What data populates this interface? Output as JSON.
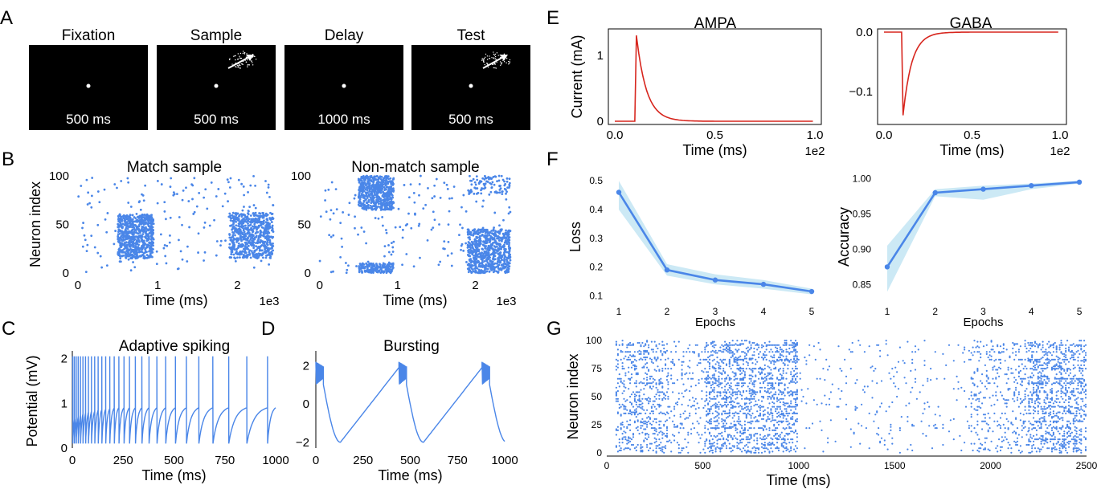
{
  "panel_letters": [
    "A",
    "B",
    "C",
    "D",
    "E",
    "F",
    "G"
  ],
  "colors": {
    "blue": "#4a86e8",
    "red": "#d7261e",
    "band": "#bfe3f2"
  },
  "chart_data": [
    {
      "id": "A",
      "type": "diagram",
      "stages": [
        {
          "title": "Fixation",
          "duration": "500 ms",
          "arrow": false
        },
        {
          "title": "Sample",
          "duration": "500 ms",
          "arrow": true
        },
        {
          "title": "Delay",
          "duration": "1000 ms",
          "arrow": false
        },
        {
          "title": "Test",
          "duration": "500 ms",
          "arrow": true
        }
      ]
    },
    {
      "id": "B1",
      "type": "scatter",
      "title": "Match sample",
      "xlabel": "Time (ms)",
      "ylabel": "Neuron index",
      "xlim": [
        -0.05,
        2.5
      ],
      "ylim": [
        0,
        100
      ],
      "x_scale": "1e3",
      "xticks": [
        0,
        1,
        2
      ],
      "yticks": [
        0,
        50,
        100
      ],
      "clusters": [
        {
          "x": [
            0.5,
            0.95
          ],
          "y": [
            15,
            60
          ],
          "n": 700
        },
        {
          "x": [
            1.9,
            2.45
          ],
          "y": [
            15,
            62
          ],
          "n": 650
        }
      ],
      "background_n": 180
    },
    {
      "id": "B2",
      "type": "scatter",
      "title": "Non-match sample",
      "xlabel": "Time (ms)",
      "ylabel": "",
      "xlim": [
        -0.05,
        2.5
      ],
      "ylim": [
        0,
        100
      ],
      "x_scale": "1e3",
      "xticks": [
        0,
        1,
        2
      ],
      "yticks": [
        0,
        50,
        100
      ],
      "clusters": [
        {
          "x": [
            0.5,
            0.95
          ],
          "y": [
            65,
            100
          ],
          "n": 550
        },
        {
          "x": [
            0.5,
            0.95
          ],
          "y": [
            0,
            10
          ],
          "n": 180
        },
        {
          "x": [
            1.9,
            2.45
          ],
          "y": [
            0,
            45
          ],
          "n": 700
        },
        {
          "x": [
            1.9,
            2.45
          ],
          "y": [
            80,
            100
          ],
          "n": 90
        }
      ],
      "background_n": 180
    },
    {
      "id": "C",
      "type": "line",
      "title": "Adaptive spiking",
      "xlabel": "Time (ms)",
      "ylabel": "Potential (mV)",
      "xlim": [
        0,
        1000
      ],
      "ylim": [
        0,
        2.1
      ],
      "xticks": [
        0,
        250,
        500,
        750,
        1000
      ],
      "yticks": [
        0,
        1,
        2
      ],
      "spike_times": [
        2,
        10,
        19,
        29,
        40,
        52,
        65,
        79,
        94,
        110,
        127,
        145,
        164,
        184,
        206,
        229,
        254,
        281,
        310,
        342,
        377,
        416,
        459,
        507,
        561,
        622,
        691,
        769,
        858,
        960
      ],
      "reset_value": 0.1,
      "spike_peak": 2.05
    },
    {
      "id": "D",
      "type": "line",
      "title": "Bursting",
      "xlabel": "Time (ms)",
      "ylabel": "",
      "xlim": [
        0,
        1000
      ],
      "ylim": [
        -2.3,
        2.6
      ],
      "xticks": [
        0,
        250,
        500,
        750,
        1000
      ],
      "yticks": [
        -2,
        0,
        2
      ],
      "burst_starts": [
        0,
        440,
        880
      ],
      "burst_length": 40,
      "burst_top": 2.2,
      "burst_bottom": 1.0,
      "trough_value": -2.0
    },
    {
      "id": "E1",
      "type": "line",
      "title": "AMPA",
      "xlabel": "Time (ms)",
      "ylabel": "Current (mA)",
      "xlim": [
        0,
        1.0
      ],
      "ylim": [
        0,
        1.35
      ],
      "x_scale": "1e2",
      "xticks": [
        0.0,
        0.5,
        1.0
      ],
      "xtick_labels": [
        "0.0",
        "0.5",
        "1.0"
      ],
      "yticks": [
        0,
        1
      ],
      "ytick_labels": [
        "0",
        "1"
      ],
      "onset": 0.1,
      "peak": 1.3,
      "tau": 0.05
    },
    {
      "id": "E2",
      "type": "line",
      "title": "GABA",
      "xlabel": "Time (ms)",
      "ylabel": "",
      "xlim": [
        0,
        1.0
      ],
      "ylim": [
        -0.15,
        0.0
      ],
      "x_scale": "1e2",
      "xticks": [
        0.0,
        0.5,
        1.0
      ],
      "xtick_labels": [
        "0.0",
        "0.5",
        "1.0"
      ],
      "yticks": [
        0.0,
        -0.1
      ],
      "ytick_labels": [
        "0.0",
        "−0.1"
      ],
      "onset": 0.1,
      "peak": -0.14,
      "tau": 0.05
    },
    {
      "id": "F1",
      "type": "line",
      "xlabel": "Epochs",
      "ylabel": "Loss",
      "x": [
        1,
        2,
        3,
        4,
        5
      ],
      "values": [
        0.46,
        0.19,
        0.155,
        0.14,
        0.115
      ],
      "band_low": [
        0.4,
        0.17,
        0.14,
        0.125,
        0.105
      ],
      "band_high": [
        0.5,
        0.21,
        0.175,
        0.155,
        0.125
      ],
      "xlim": [
        0.8,
        5.2
      ],
      "ylim": [
        0.09,
        0.52
      ],
      "xticks": [
        1,
        2,
        3,
        4,
        5
      ],
      "yticks": [
        0.1,
        0.2,
        0.3,
        0.4,
        0.5
      ],
      "ytick_labels": [
        "0.1",
        "0.2",
        "0.3",
        "0.4",
        "0.5"
      ]
    },
    {
      "id": "F2",
      "type": "line",
      "xlabel": "Epochs",
      "ylabel": "Accuracy",
      "x": [
        1,
        2,
        3,
        4,
        5
      ],
      "values": [
        0.875,
        0.98,
        0.985,
        0.99,
        0.995
      ],
      "band_low": [
        0.84,
        0.975,
        0.97,
        0.985,
        0.993
      ],
      "band_high": [
        0.905,
        0.985,
        0.99,
        0.993,
        0.997
      ],
      "xlim": [
        0.8,
        5.2
      ],
      "ylim": [
        0.83,
        1.005
      ],
      "xticks": [
        1,
        2,
        3,
        4,
        5
      ],
      "yticks": [
        0.85,
        0.9,
        0.95,
        1.0
      ],
      "ytick_labels": [
        "0.85",
        "0.90",
        "0.95",
        "1.00"
      ]
    },
    {
      "id": "G",
      "type": "scatter",
      "xlabel": "Time (ms)",
      "ylabel": "Neuron index",
      "xlim": [
        0,
        2500
      ],
      "ylim": [
        -3,
        103
      ],
      "xticks": [
        0,
        500,
        1000,
        1500,
        2000,
        2500
      ],
      "yticks": [
        0,
        25,
        50,
        75,
        100
      ],
      "regions": [
        {
          "x": [
            50,
            320
          ],
          "density": 0.45
        },
        {
          "x": [
            320,
            520
          ],
          "density": 0.2
        },
        {
          "x": [
            520,
            1000
          ],
          "density": 0.6
        },
        {
          "x": [
            1000,
            1900
          ],
          "density": 0.06
        },
        {
          "x": [
            1900,
            2200
          ],
          "density": 0.25
        },
        {
          "x": [
            2200,
            2500
          ],
          "density": 0.6
        }
      ],
      "step_ms": 8
    }
  ]
}
